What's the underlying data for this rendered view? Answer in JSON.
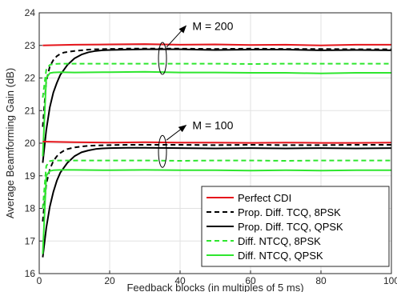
{
  "chart_data": {
    "type": "line",
    "xlabel": "Feedback blocks (in multiples of 5 ms)",
    "ylabel": "Average Beamforming Gain (dB)",
    "xlim": [
      0,
      100
    ],
    "ylim": [
      16,
      24
    ],
    "xticks": [
      0,
      20,
      40,
      60,
      80,
      100
    ],
    "yticks": [
      16,
      17,
      18,
      19,
      20,
      21,
      22,
      23,
      24
    ],
    "grid": true,
    "legend_position": "bottom-right",
    "annotations": [
      {
        "text": "M = 200",
        "target": [
          35,
          22.6
        ],
        "label_at": [
          43.5,
          23.6
        ]
      },
      {
        "text": "M = 100",
        "target": [
          35,
          19.75
        ],
        "label_at": [
          43.5,
          20.55
        ]
      }
    ],
    "series": [
      {
        "name": "Perfect CDI",
        "color": "#e6151b",
        "style": "solid",
        "x": [
          1,
          10,
          20,
          30,
          40,
          50,
          60,
          70,
          80,
          90,
          100
        ],
        "values": [
          23.0,
          23.02,
          23.03,
          23.04,
          23.02,
          23.03,
          23.01,
          23.02,
          23.0,
          23.02,
          23.02
        ]
      },
      {
        "name": "Prop. Diff. TCQ, 8PSK",
        "color": "#000000",
        "style": "dashed",
        "x": [
          1,
          2,
          3,
          4,
          5,
          6,
          7,
          8,
          10,
          12,
          14,
          16,
          20,
          25,
          30,
          40,
          50,
          60,
          70,
          80,
          90,
          100
        ],
        "values": [
          20.5,
          21.9,
          22.35,
          22.55,
          22.67,
          22.74,
          22.78,
          22.8,
          22.83,
          22.85,
          22.87,
          22.88,
          22.89,
          22.9,
          22.9,
          22.9,
          22.89,
          22.9,
          22.89,
          22.89,
          22.88,
          22.88
        ]
      },
      {
        "name": "Prop. Diff. TCQ, QPSK",
        "color": "#000000",
        "style": "solid",
        "x": [
          1,
          2,
          3,
          4,
          5,
          6,
          8,
          10,
          12,
          14,
          16,
          18,
          20,
          25,
          30,
          40,
          50,
          60,
          70,
          80,
          90,
          100
        ],
        "values": [
          19.4,
          20.4,
          21.1,
          21.55,
          21.85,
          22.1,
          22.4,
          22.6,
          22.72,
          22.79,
          22.83,
          22.85,
          22.86,
          22.87,
          22.88,
          22.88,
          22.86,
          22.87,
          22.87,
          22.85,
          22.86,
          22.85
        ]
      },
      {
        "name": "Diff. NTCQ, 8PSK",
        "color": "#2ee62e",
        "style": "dashed",
        "x": [
          1,
          2,
          3,
          4,
          6,
          10,
          20,
          30,
          40,
          50,
          60,
          70,
          80,
          90,
          100
        ],
        "values": [
          21.4,
          22.25,
          22.4,
          22.43,
          22.44,
          22.44,
          22.44,
          22.44,
          22.44,
          22.44,
          22.43,
          22.44,
          22.44,
          22.44,
          22.44
        ]
      },
      {
        "name": "Diff. NTCQ, QPSK",
        "color": "#2ee62e",
        "style": "solid",
        "x": [
          1,
          2,
          3,
          4,
          6,
          10,
          20,
          30,
          40,
          50,
          60,
          70,
          80,
          90,
          100
        ],
        "values": [
          19.6,
          22.0,
          22.15,
          22.17,
          22.18,
          22.17,
          22.18,
          22.19,
          22.17,
          22.17,
          22.16,
          22.16,
          22.14,
          22.16,
          22.16
        ]
      },
      {
        "name": "Perfect CDI",
        "color": "#e6151b",
        "style": "solid",
        "x": [
          1,
          10,
          20,
          30,
          40,
          50,
          60,
          70,
          80,
          90,
          100
        ],
        "values": [
          20.05,
          20.03,
          20.02,
          20.03,
          20.02,
          20.02,
          20.01,
          20.02,
          20.01,
          20.01,
          20.02
        ]
      },
      {
        "name": "Prop. Diff. TCQ, 8PSK",
        "color": "#000000",
        "style": "dashed",
        "x": [
          1,
          2,
          3,
          4,
          5,
          6,
          7,
          8,
          10,
          12,
          14,
          16,
          20,
          25,
          30,
          40,
          50,
          60,
          70,
          80,
          90,
          100
        ],
        "values": [
          17.6,
          18.75,
          19.2,
          19.45,
          19.6,
          19.7,
          19.77,
          19.82,
          19.87,
          19.9,
          19.92,
          19.93,
          19.94,
          19.95,
          19.95,
          19.95,
          19.94,
          19.95,
          19.94,
          19.94,
          19.95,
          19.95
        ]
      },
      {
        "name": "Prop. Diff. TCQ, QPSK",
        "color": "#000000",
        "style": "solid",
        "x": [
          1,
          2,
          3,
          4,
          5,
          6,
          8,
          10,
          12,
          14,
          16,
          18,
          20,
          25,
          30,
          40,
          50,
          60,
          70,
          80,
          90,
          100
        ],
        "values": [
          16.5,
          17.4,
          18.05,
          18.5,
          18.85,
          19.1,
          19.4,
          19.6,
          19.72,
          19.78,
          19.82,
          19.84,
          19.85,
          19.86,
          19.86,
          19.85,
          19.84,
          19.85,
          19.84,
          19.85,
          19.84,
          19.85
        ]
      },
      {
        "name": "Diff. NTCQ, 8PSK",
        "color": "#2ee62e",
        "style": "dashed",
        "x": [
          1,
          2,
          3,
          4,
          6,
          10,
          20,
          30,
          40,
          50,
          60,
          70,
          80,
          90,
          100
        ],
        "values": [
          18.0,
          19.3,
          19.45,
          19.47,
          19.47,
          19.47,
          19.47,
          19.47,
          19.46,
          19.47,
          19.47,
          19.46,
          19.47,
          19.47,
          19.47
        ]
      },
      {
        "name": "Diff. NTCQ, QPSK",
        "color": "#2ee62e",
        "style": "solid",
        "x": [
          1,
          2,
          3,
          4,
          6,
          10,
          20,
          30,
          40,
          50,
          60,
          70,
          80,
          90,
          100
        ],
        "values": [
          16.6,
          19.0,
          19.15,
          19.17,
          19.18,
          19.18,
          19.17,
          19.18,
          19.17,
          19.17,
          19.16,
          19.17,
          19.16,
          19.17,
          19.17
        ]
      }
    ],
    "legend": [
      {
        "label": "Perfect CDI",
        "color": "#e6151b",
        "style": "solid"
      },
      {
        "label": "Prop. Diff. TCQ, 8PSK",
        "color": "#000000",
        "style": "dashed"
      },
      {
        "label": "Prop. Diff. TCQ, QPSK",
        "color": "#000000",
        "style": "solid"
      },
      {
        "label": "Diff. NTCQ, 8PSK",
        "color": "#2ee62e",
        "style": "dashed"
      },
      {
        "label": "Diff. NTCQ, QPSK",
        "color": "#2ee62e",
        "style": "solid"
      }
    ]
  }
}
